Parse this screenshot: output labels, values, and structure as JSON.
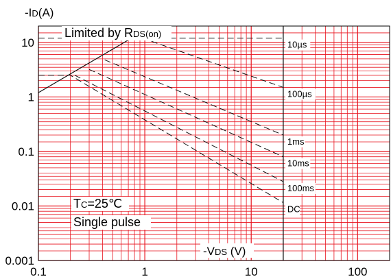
{
  "chart_data": {
    "type": "line",
    "title": "",
    "ylabel": {
      "prefix": "-I",
      "sub": "D",
      "suffix": "(A)"
    },
    "xlabel": {
      "prefix": "-V",
      "sub": "DS",
      "suffix": " (V)"
    },
    "x_scale": "log",
    "y_scale": "log",
    "xlim": [
      0.1,
      200
    ],
    "ylim": [
      0.001,
      20
    ],
    "x_ticks": [
      {
        "value": 0.1,
        "label": "0.1"
      },
      {
        "value": 1,
        "label": "1"
      },
      {
        "value": 10,
        "label": "10"
      },
      {
        "value": 100,
        "label": "100"
      }
    ],
    "y_ticks": [
      {
        "value": 0.001,
        "label": "0.001"
      },
      {
        "value": 0.01,
        "label": "0.01"
      },
      {
        "value": 0.1,
        "label": "0.1"
      },
      {
        "value": 1,
        "label": "1"
      },
      {
        "value": 10,
        "label": "10"
      }
    ],
    "grid": true,
    "grid_color": "#e8131e",
    "line_color": "#111111",
    "limit_line": {
      "label": {
        "prefix": "Limited by R",
        "sub": "DS(on)",
        "suffix": ""
      },
      "points": [
        [
          0.1,
          1.2
        ],
        [
          0.75,
          12
        ]
      ]
    },
    "series": [
      {
        "name": "10µs",
        "points": [
          [
            0.75,
            12
          ],
          [
            20,
            12
          ]
        ]
      },
      {
        "name": "100µs",
        "points": [
          [
            0.95,
            12
          ],
          [
            20,
            1.5
          ]
        ]
      },
      {
        "name": "1ms",
        "points": [
          [
            0.42,
            4.8
          ],
          [
            20,
            0.2
          ]
        ]
      },
      {
        "name": "10ms",
        "points": [
          [
            0.3,
            3.2
          ],
          [
            20,
            0.08
          ]
        ]
      },
      {
        "name": "100ms",
        "points": [
          [
            0.22,
            2.5
          ],
          [
            20,
            0.028
          ]
        ]
      },
      {
        "name": "DC",
        "points": [
          [
            0.1,
            2.5
          ],
          [
            0.2,
            2.5
          ],
          [
            20,
            0.0115
          ]
        ]
      }
    ],
    "reference_lines": [
      {
        "type": "horizontal",
        "value": 12,
        "from": 0.1,
        "to": 0.75
      },
      {
        "type": "vertical",
        "value": 20
      }
    ],
    "notes": [
      {
        "prefix": "T",
        "sub": "C",
        "suffix": "=25℃"
      },
      {
        "prefix": "Single pulse",
        "sub": "",
        "suffix": ""
      }
    ]
  }
}
